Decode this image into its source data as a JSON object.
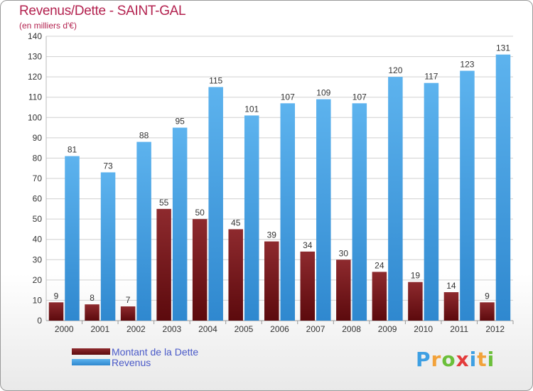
{
  "chart_data": {
    "type": "bar",
    "title": "Revenus/Dette - SAINT-GAL",
    "subtitle": "(en milliers d'€)",
    "categories": [
      "2000",
      "2001",
      "2002",
      "2003",
      "2004",
      "2005",
      "2006",
      "2007",
      "2008",
      "2009",
      "2010",
      "2011",
      "2012"
    ],
    "series": [
      {
        "name": "Montant de la Dette",
        "color": "#7a1418",
        "values": [
          9,
          8,
          7,
          55,
          50,
          45,
          39,
          34,
          30,
          24,
          19,
          14,
          9
        ]
      },
      {
        "name": "Revenus",
        "color": "#3d9fe3",
        "values": [
          81,
          73,
          88,
          95,
          115,
          101,
          107,
          109,
          107,
          120,
          117,
          123,
          131
        ]
      }
    ],
    "ylim": [
      0,
      140
    ],
    "yticks": [
      0,
      10,
      20,
      30,
      40,
      50,
      60,
      70,
      80,
      90,
      100,
      110,
      120,
      130,
      140
    ],
    "grid": true,
    "legend_position": "bottom-left"
  },
  "branding": {
    "logo_letters": [
      "P",
      "r",
      "o",
      "x",
      "i",
      "t",
      "i"
    ],
    "logo_colors": [
      "#3d9fe3",
      "#f2a23a",
      "#6bbf3a",
      "#e33b3b",
      "#3d9fe3",
      "#f2a23a",
      "#6bbf3a"
    ]
  }
}
